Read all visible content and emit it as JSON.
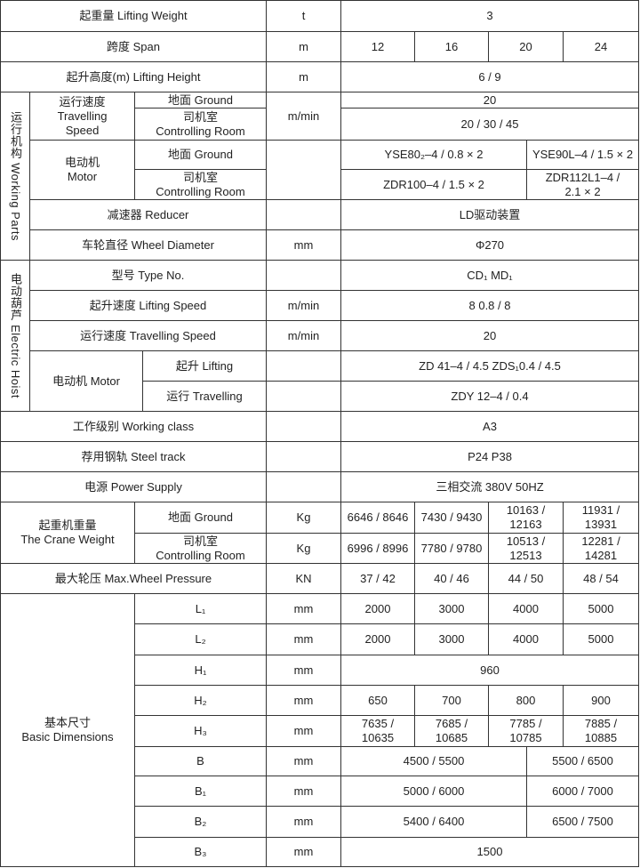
{
  "lifting_weight": {
    "label": "起重量  Lifting Weight",
    "unit": "t",
    "value": "3"
  },
  "span": {
    "label": "跨度  Span",
    "unit": "m",
    "values": [
      "12",
      "16",
      "20",
      "24"
    ]
  },
  "lifting_height": {
    "label": "起升高度(m)  Lifting Height",
    "unit": "m",
    "value": "6 / 9"
  },
  "working_parts": {
    "group_label": "运行机构  Working Parts",
    "travelling_speed": {
      "label": "运行速度\nTravelling\nSpeed",
      "unit": "m/min",
      "ground_label": "地面 Ground",
      "ground_value": "20",
      "control_label": "司机室\nControlling Room",
      "control_value": "20 / 30 / 45"
    },
    "motor": {
      "label": "电动机\nMotor",
      "ground_label": "地面 Ground",
      "ground_values": [
        "YSE80₂–4 / 0.8 × 2",
        "YSE90L–4 / 1.5 × 2"
      ],
      "control_label": "司机室\nControlling Room",
      "control_values": [
        "ZDR100–4 / 1.5 × 2",
        "ZDR112L1–4 /\n2.1 × 2"
      ]
    },
    "reducer": {
      "label": "减速器 Reducer",
      "value": "LD驱动装置"
    },
    "wheel_diameter": {
      "label": "车轮直径 Wheel Diameter",
      "unit": "mm",
      "value": "Φ270"
    }
  },
  "electric_hoist": {
    "group_label": "电动葫芦  Electric Hoist",
    "type": {
      "label": "型号 Type No.",
      "value": "CD₁    MD₁"
    },
    "lifting_speed": {
      "label": "起升速度 Lifting Speed",
      "unit": "m/min",
      "value": "8       0.8 / 8"
    },
    "travelling_speed": {
      "label": "运行速度 Travelling Speed",
      "unit": "m/min",
      "value": "20"
    },
    "motor": {
      "label": "电动机 Motor",
      "lifting_label": "起升 Lifting",
      "lifting_value": "ZD 41–4 / 4.5   ZDS₁0.4 / 4.5",
      "travelling_label": "运行 Travelling",
      "travelling_value": "ZDY 12–4 / 0.4"
    }
  },
  "working_class": {
    "label": "工作级别 Working class",
    "value": "A3"
  },
  "steel_track": {
    "label": "荐用钢轨 Steel track",
    "value": "P24    P38"
  },
  "power_supply": {
    "label": "电源 Power Supply",
    "value": "三相交流 380V  50HZ"
  },
  "crane_weight": {
    "label": "起重机重量\nThe Crane Weight",
    "ground_label": "地面 Ground",
    "ground_unit": "Kg",
    "ground_values": [
      "6646 / 8646",
      "7430 / 9430",
      "10163 /\n12163",
      "11931 /\n13931"
    ],
    "control_label": "司机室\nControlling Room",
    "control_unit": "Kg",
    "control_values": [
      "6996 / 8996",
      "7780 / 9780",
      "10513 /\n12513",
      "12281 /\n14281"
    ]
  },
  "wheel_pressure": {
    "label": "最大轮压 Max.Wheel Pressure",
    "unit": "KN",
    "values": [
      "37 / 42",
      "40 / 46",
      "44 / 50",
      "48 / 54"
    ]
  },
  "basic_dimensions": {
    "label": "基本尺寸\nBasic Dimensions",
    "rows": [
      {
        "name": "L₁",
        "unit": "mm",
        "values": [
          "2000",
          "3000",
          "4000",
          "5000"
        ]
      },
      {
        "name": "L₂",
        "unit": "mm",
        "values": [
          "2000",
          "3000",
          "4000",
          "5000"
        ]
      },
      {
        "name": "H₁",
        "unit": "mm",
        "values": [
          "960"
        ]
      },
      {
        "name": "H₂",
        "unit": "mm",
        "values": [
          "650",
          "700",
          "800",
          "900"
        ]
      },
      {
        "name": "H₃",
        "unit": "mm",
        "values": [
          "7635 /\n10635",
          "7685 /\n10685",
          "7785 /\n10785",
          "7885 /\n10885"
        ]
      },
      {
        "name": "B",
        "unit": "mm",
        "values": [
          "4500 / 5500",
          "5500 / 6500"
        ]
      },
      {
        "name": "B₁",
        "unit": "mm",
        "values": [
          "5000 / 6000",
          "6000 / 7000"
        ]
      },
      {
        "name": "B₂",
        "unit": "mm",
        "values": [
          "5400 / 6400",
          "6500 / 7500"
        ]
      },
      {
        "name": "B₃",
        "unit": "mm",
        "values": [
          "1500"
        ]
      }
    ]
  }
}
